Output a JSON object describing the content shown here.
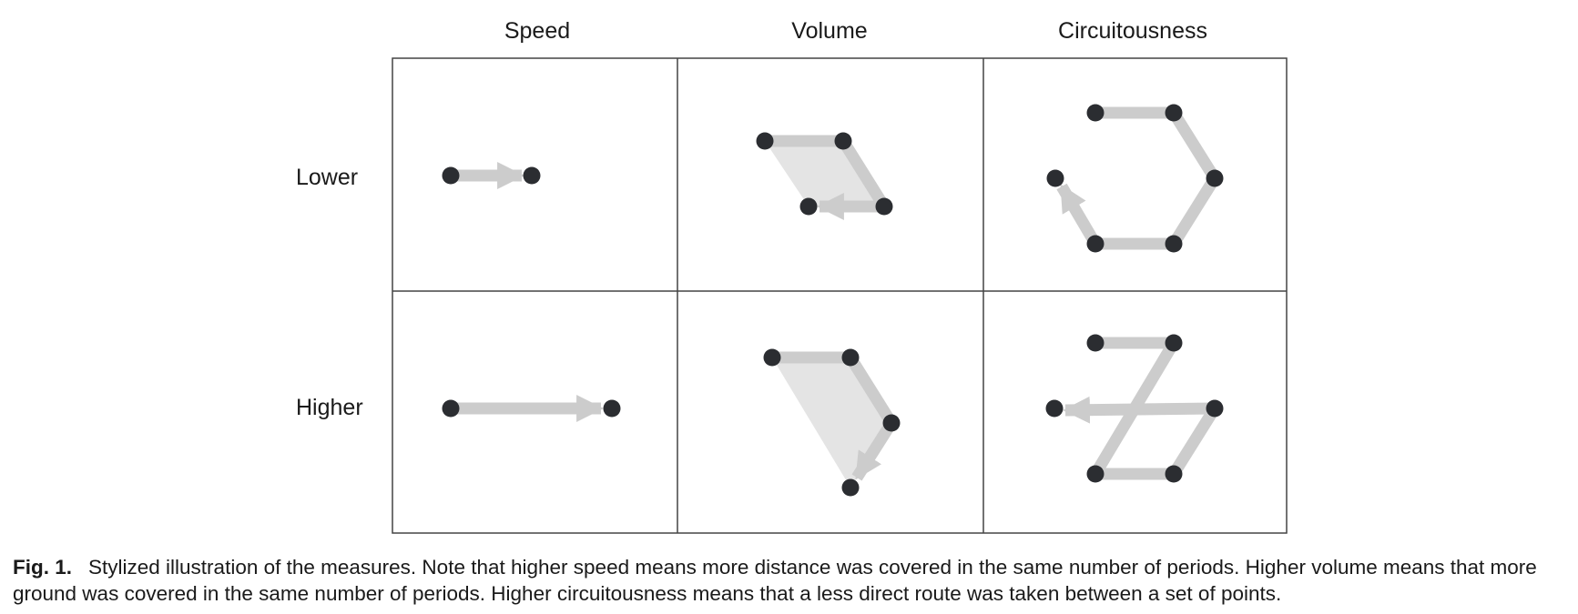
{
  "figure": {
    "columns": [
      "Speed",
      "Volume",
      "Circuitousness"
    ],
    "rows": [
      "Lower",
      "Higher"
    ]
  },
  "caption": {
    "label": "Fig. 1.",
    "text": "Stylized illustration of the measures. Note that higher speed means more distance was covered in the same number of periods. Higher volume means that more ground was covered in the same number of periods. Higher circuitousness means that a less direct route was taken between a set of points."
  },
  "colors": {
    "path": "#cccccc",
    "area": "#e4e4e4",
    "point": "#2b2d31",
    "grid": "#444444"
  },
  "icons": {
    "point": "dot-icon",
    "step": "arrow-icon"
  }
}
